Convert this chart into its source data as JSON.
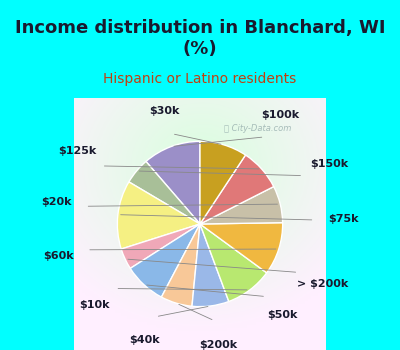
{
  "title": "Income distribution in Blanchard, WI\n(%)",
  "subtitle": "Hispanic or Latino residents",
  "watermark": "ⓘ City-Data.com",
  "labels": [
    "$100k",
    "$150k",
    "$75k",
    "> $200k",
    "$50k",
    "$200k",
    "$40k",
    "$10k",
    "$60k",
    "$20k",
    "$125k",
    "$30k"
  ],
  "values": [
    11,
    5,
    13,
    4,
    8,
    6,
    7,
    9,
    10,
    7,
    8,
    9
  ],
  "colors": [
    "#9b8fc8",
    "#a8bf98",
    "#f5f083",
    "#f0a8b8",
    "#8ab8e8",
    "#f8c898",
    "#9ab8e8",
    "#b8e870",
    "#f0b840",
    "#c8c0a8",
    "#e07878",
    "#c8a020"
  ],
  "background_top": "#00ffff",
  "background_chart_color": "#d0eee0",
  "label_color": "#1a1a2e",
  "title_color": "#1a1a2e",
  "subtitle_color": "#c04010",
  "startangle": 90,
  "title_fontsize": 13,
  "subtitle_fontsize": 10,
  "label_fontsize": 8
}
